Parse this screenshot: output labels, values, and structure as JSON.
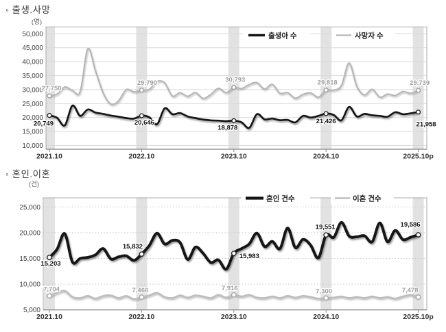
{
  "page": {
    "background": "#ffffff"
  },
  "colors": {
    "band": "#e2e2e2",
    "grid_top": "#d9d9d9",
    "grid_bottom": "#c9c9c9",
    "frame": "#a8a8a8",
    "axis": "#858585",
    "tick_text": "#3d3d3d",
    "black_series": "#141414",
    "gray_series_top": "#b5b5b5",
    "gray_series_bottom": "#bdbdbd",
    "gray_label": "#a0a0a0"
  },
  "chart_data": [
    {
      "type": "line",
      "title": "◦ 출생.사망",
      "unit_label": "(명)",
      "n_points": 49,
      "x_ticks": [
        {
          "index": 0,
          "label": "2021.10"
        },
        {
          "index": 12,
          "label": "2022.10"
        },
        {
          "index": 24,
          "label": "2023.10"
        },
        {
          "index": 36,
          "label": "2024.10"
        },
        {
          "index": 48,
          "label": "2025.10p"
        }
      ],
      "y_ticks": [
        {
          "value": 50000,
          "label": "50,000"
        },
        {
          "value": 45000,
          "label": "45,000"
        },
        {
          "value": 40000,
          "label": "40,000"
        },
        {
          "value": 35000,
          "label": "35,000"
        },
        {
          "value": 30000,
          "label": "30,000"
        },
        {
          "value": 25000,
          "label": "25,000"
        },
        {
          "value": 20000,
          "label": "20,000"
        },
        {
          "value": 15000,
          "label": "15,000"
        },
        {
          "value": 10000,
          "label": "10,000"
        }
      ],
      "band_indices": [
        0,
        12,
        24,
        36,
        48
      ],
      "legend_position": "top-inside",
      "series": [
        {
          "name": "출생아 수",
          "color": "#141414",
          "values": [
            20749,
            19900,
            17200,
            24300,
            20600,
            22900,
            21800,
            21300,
            20700,
            20300,
            19800,
            19600,
            20646,
            20100,
            17600,
            23300,
            21200,
            21600,
            20400,
            19800,
            19300,
            19000,
            18900,
            18700,
            18878,
            18300,
            16300,
            21200,
            19350,
            19650,
            19050,
            19150,
            18250,
            20600,
            20000,
            20600,
            21426,
            20900,
            19000,
            23800,
            20400,
            21300,
            20800,
            20600,
            20300,
            21900,
            21200,
            21500,
            21958
          ],
          "labeled_points": [
            {
              "index": 0,
              "label": "20,749"
            },
            {
              "index": 12,
              "label": "20,646"
            },
            {
              "index": 24,
              "label": "18,878"
            },
            {
              "index": 36,
              "label": "21,426"
            },
            {
              "index": 48,
              "label": "21,958"
            }
          ]
        },
        {
          "name": "사망자 수",
          "color": "#b5b5b5",
          "values": [
            27750,
            28400,
            30900,
            29700,
            29300,
            44600,
            36700,
            28800,
            24800,
            26000,
            30000,
            29200,
            29790,
            30100,
            32900,
            32400,
            27700,
            28900,
            27600,
            28950,
            26850,
            28250,
            30500,
            28900,
            30793,
            30400,
            31800,
            32500,
            30200,
            31900,
            28700,
            28900,
            26900,
            28300,
            28800,
            27300,
            29818,
            29800,
            31500,
            39500,
            31200,
            28100,
            30100,
            27300,
            28400,
            27900,
            29300,
            28700,
            29739
          ],
          "labeled_points": [
            {
              "index": 0,
              "label": "27,750"
            },
            {
              "index": 12,
              "label": "29,790"
            },
            {
              "index": 24,
              "label": "30,793"
            },
            {
              "index": 36,
              "label": "29,818"
            },
            {
              "index": 48,
              "label": "29,739"
            }
          ]
        }
      ]
    },
    {
      "type": "line",
      "title": "◦ 혼인.이혼",
      "unit_label": "(건)",
      "n_points": 49,
      "x_ticks": [
        {
          "index": 0,
          "label": "2021.10"
        },
        {
          "index": 12,
          "label": "2022.10"
        },
        {
          "index": 24,
          "label": "2023.10"
        },
        {
          "index": 36,
          "label": "2024.10"
        },
        {
          "index": 48,
          "label": "2025.10p"
        }
      ],
      "y_ticks": [
        {
          "value": 25000,
          "label": "25,000"
        },
        {
          "value": 20000,
          "label": "20,000"
        },
        {
          "value": 15000,
          "label": "15,000"
        },
        {
          "value": 10000,
          "label": "10,000"
        },
        {
          "value": 5000,
          "label": "5,000"
        }
      ],
      "band_indices": [
        0,
        12,
        24,
        36,
        48
      ],
      "legend_position": "top-inside",
      "series": [
        {
          "name": "혼인 건수",
          "color": "#141414",
          "values": [
            15203,
            16800,
            19800,
            14300,
            15000,
            15200,
            15700,
            16900,
            14900,
            15300,
            15500,
            14600,
            15832,
            17500,
            19900,
            17800,
            18500,
            18100,
            14800,
            17200,
            16000,
            14200,
            14700,
            12900,
            15983,
            16900,
            17800,
            19900,
            17300,
            18300,
            16900,
            20900,
            17100,
            18700,
            17550,
            15100,
            19551,
            19100,
            22000,
            19330,
            19200,
            19400,
            18230,
            21900,
            18230,
            20440,
            18670,
            19100,
            19586
          ],
          "labeled_points": [
            {
              "index": 0,
              "label": "15,203"
            },
            {
              "index": 12,
              "label": "15,832"
            },
            {
              "index": 24,
              "label": "15,983"
            },
            {
              "index": 36,
              "label": "19,551"
            },
            {
              "index": 48,
              "label": "19,586"
            }
          ]
        },
        {
          "name": "이혼 건수",
          "color": "#bdbdbd",
          "values": [
            7704,
            8300,
            8700,
            7500,
            7300,
            7700,
            7200,
            7700,
            7800,
            7300,
            7700,
            7100,
            7466,
            7800,
            8300,
            7500,
            7300,
            7800,
            7400,
            7800,
            7600,
            7300,
            7900,
            7400,
            7916,
            7600,
            7900,
            7400,
            7300,
            7600,
            7300,
            7700,
            7400,
            7700,
            7500,
            7200,
            7300,
            7400,
            7600,
            7300,
            7500,
            7300,
            7600,
            7300,
            7500,
            7200,
            7600,
            7900,
            7478
          ],
          "labeled_points": [
            {
              "index": 0,
              "label": "7,704"
            },
            {
              "index": 12,
              "label": "7,466"
            },
            {
              "index": 24,
              "label": "7,916"
            },
            {
              "index": 36,
              "label": "7,300"
            },
            {
              "index": 48,
              "label": "7,478"
            }
          ]
        }
      ]
    }
  ]
}
